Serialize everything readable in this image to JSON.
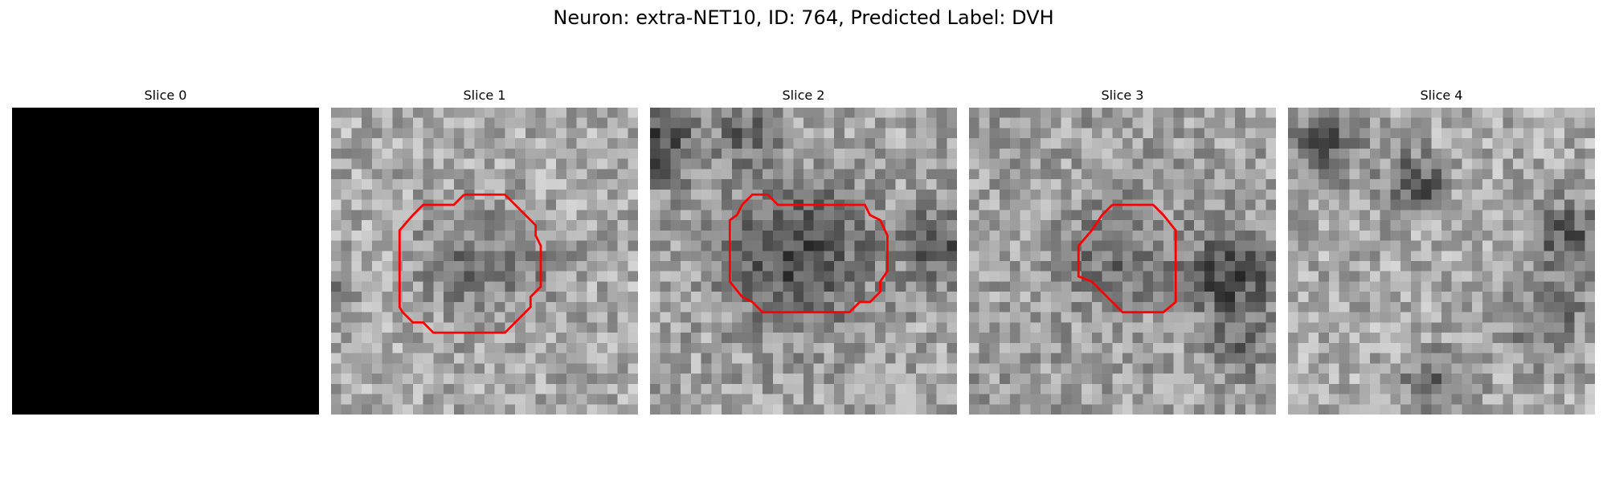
{
  "figure": {
    "title": "Neuron: extra-NET10, ID: 764, Predicted Label: DVH"
  },
  "colors": {
    "contour": "#ff0000",
    "background": "#ffffff",
    "blank_slice": "#000000"
  },
  "panels": [
    {
      "title": "Slice 0",
      "image": "blank-black-slice",
      "has_contour": false
    },
    {
      "title": "Slice 1",
      "image": "grayscale-microscopy-slice",
      "has_contour": true
    },
    {
      "title": "Slice 2",
      "image": "grayscale-microscopy-slice",
      "has_contour": true
    },
    {
      "title": "Slice 3",
      "image": "grayscale-microscopy-slice",
      "has_contour": true
    },
    {
      "title": "Slice 4",
      "image": "grayscale-microscopy-slice",
      "has_contour": false
    }
  ]
}
